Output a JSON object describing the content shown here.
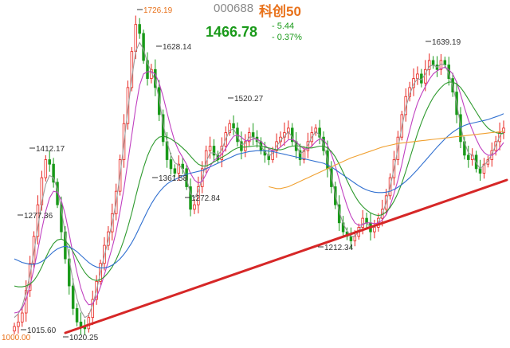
{
  "header": {
    "code": "000688",
    "name": "科创50",
    "price": "1466.78",
    "change": "- 5.44",
    "change_pct": "- 0.37%"
  },
  "colors": {
    "up": "#e8231d",
    "down": "#1a9a1a",
    "trendline": "#d62727",
    "ma_white": "#9a9a9a",
    "ma_yellow": "#e0b020",
    "ma_purple": "#c040c0",
    "ma_green": "#2e9a2e",
    "ma_blue": "#2f6fd0",
    "ma_orange": "#f0a030",
    "high_label": "#e8711a"
  },
  "chart_data": {
    "type": "candlestick",
    "title": "科创50",
    "ylim": [
      1000,
      1740
    ],
    "grid": false,
    "annotations": [
      {
        "label": "1726.19",
        "value": 1726.19,
        "kind": "high"
      },
      {
        "label": "1628.14",
        "value": 1628.14,
        "kind": "high"
      },
      {
        "label": "1639.19",
        "value": 1639.19,
        "kind": "high"
      },
      {
        "label": "1520.27",
        "value": 1520.27,
        "kind": "high"
      },
      {
        "label": "1412.17",
        "value": 1412.17,
        "kind": "high"
      },
      {
        "label": "1361.58",
        "value": 1361.58,
        "kind": "low"
      },
      {
        "label": "1277.36",
        "value": 1277.36,
        "kind": "low"
      },
      {
        "label": "1272.84",
        "value": 1272.84,
        "kind": "low"
      },
      {
        "label": "1212.34",
        "value": 1212.34,
        "kind": "low"
      },
      {
        "label": "1015.60",
        "value": 1015.6,
        "kind": "low"
      },
      {
        "label": "1020.25",
        "value": 1020.25,
        "kind": "low"
      },
      {
        "label": "1000.00",
        "value": 1000.0,
        "kind": "base"
      }
    ],
    "trendline": {
      "from": 1015.6,
      "to": 1212.34,
      "color": "#d62727"
    },
    "closes": [
      1030,
      1040,
      1060,
      1110,
      1170,
      1230,
      1300,
      1360,
      1400,
      1390,
      1350,
      1300,
      1240,
      1180,
      1120,
      1070,
      1040,
      1030,
      1025,
      1050,
      1090,
      1130,
      1170,
      1210,
      1240,
      1280,
      1330,
      1400,
      1480,
      1560,
      1640,
      1700,
      1680,
      1620,
      1580,
      1600,
      1560,
      1500,
      1440,
      1400,
      1380,
      1370,
      1390,
      1380,
      1340,
      1290,
      1300,
      1340,
      1380,
      1420,
      1430,
      1410,
      1400,
      1430,
      1460,
      1480,
      1470,
      1440,
      1420,
      1440,
      1460,
      1450,
      1440,
      1420,
      1410,
      1400,
      1420,
      1440,
      1450,
      1460,
      1470,
      1440,
      1420,
      1400,
      1420,
      1440,
      1460,
      1470,
      1450,
      1420,
      1380,
      1340,
      1300,
      1260,
      1240,
      1230,
      1220,
      1230,
      1250,
      1270,
      1260,
      1240,
      1250,
      1270,
      1290,
      1320,
      1360,
      1400,
      1450,
      1500,
      1540,
      1560,
      1580,
      1590,
      1570,
      1600,
      1620,
      1610,
      1600,
      1620,
      1610,
      1580,
      1550,
      1500,
      1440,
      1410,
      1400,
      1410,
      1380,
      1370,
      1390,
      1400,
      1420,
      1440,
      1460,
      1470
    ]
  },
  "ma_series": [
    {
      "color": "#9a9a9a",
      "values": [
        1050,
        1058,
        1075,
        1105,
        1145,
        1195,
        1250,
        1305,
        1345,
        1365,
        1360,
        1335,
        1290,
        1235,
        1180,
        1130,
        1092,
        1065,
        1050,
        1055,
        1078,
        1110,
        1150,
        1188,
        1222,
        1260,
        1305,
        1365,
        1435,
        1510,
        1580,
        1640,
        1660,
        1645,
        1615,
        1595,
        1575,
        1535,
        1480,
        1440,
        1410,
        1393,
        1388,
        1380,
        1358,
        1325,
        1315,
        1330,
        1360,
        1395,
        1415,
        1415,
        1410,
        1422,
        1445,
        1465,
        1468,
        1452,
        1433,
        1436,
        1450,
        1450,
        1444,
        1430,
        1418,
        1408,
        1414,
        1430,
        1442,
        1452,
        1462,
        1450,
        1432,
        1414,
        1418,
        1432,
        1450,
        1462,
        1455,
        1433,
        1400,
        1362,
        1322,
        1285,
        1258,
        1242,
        1230,
        1230,
        1242,
        1258,
        1260,
        1250,
        1250,
        1262,
        1280,
        1305,
        1340,
        1380,
        1425,
        1472,
        1515,
        1545,
        1567,
        1580,
        1577,
        1590,
        1607,
        1610,
        1605,
        1612,
        1610,
        1590,
        1565,
        1525,
        1475,
        1438,
        1415,
        1410,
        1393,
        1380,
        1388,
        1397,
        1413,
        1432,
        1452,
        1464
      ]
    },
    {
      "color": "#c040c0",
      "values": [
        1060,
        1062,
        1070,
        1090,
        1120,
        1158,
        1200,
        1245,
        1285,
        1315,
        1330,
        1328,
        1310,
        1278,
        1235,
        1190,
        1150,
        1115,
        1090,
        1078,
        1080,
        1095,
        1118,
        1145,
        1175,
        1205,
        1240,
        1285,
        1335,
        1395,
        1455,
        1515,
        1565,
        1590,
        1595,
        1595,
        1590,
        1570,
        1540,
        1505,
        1470,
        1440,
        1420,
        1405,
        1390,
        1370,
        1355,
        1348,
        1352,
        1368,
        1385,
        1398,
        1405,
        1412,
        1425,
        1440,
        1452,
        1455,
        1450,
        1442,
        1442,
        1446,
        1446,
        1440,
        1432,
        1424,
        1420,
        1422,
        1428,
        1436,
        1444,
        1445,
        1440,
        1430,
        1424,
        1424,
        1430,
        1440,
        1446,
        1444,
        1432,
        1412,
        1386,
        1355,
        1325,
        1298,
        1275,
        1260,
        1254,
        1256,
        1260,
        1260,
        1258,
        1260,
        1266,
        1278,
        1298,
        1325,
        1355,
        1390,
        1430,
        1465,
        1498,
        1525,
        1545,
        1562,
        1578,
        1590,
        1597,
        1602,
        1605,
        1600,
        1590,
        1572,
        1545,
        1515,
        1488,
        1466,
        1446,
        1428,
        1416,
        1410,
        1410,
        1416,
        1426,
        1438
      ]
    },
    {
      "color": "#2e9a2e",
      "values": [
        1120,
        1118,
        1118,
        1120,
        1124,
        1132,
        1145,
        1162,
        1182,
        1200,
        1214,
        1222,
        1224,
        1220,
        1210,
        1196,
        1180,
        1164,
        1150,
        1140,
        1134,
        1132,
        1134,
        1140,
        1150,
        1162,
        1178,
        1198,
        1222,
        1250,
        1282,
        1318,
        1352,
        1382,
        1408,
        1428,
        1442,
        1450,
        1452,
        1450,
        1446,
        1440,
        1434,
        1426,
        1418,
        1408,
        1398,
        1390,
        1386,
        1386,
        1390,
        1395,
        1400,
        1405,
        1410,
        1416,
        1422,
        1426,
        1428,
        1428,
        1429,
        1430,
        1431,
        1430,
        1428,
        1426,
        1424,
        1422,
        1422,
        1424,
        1428,
        1430,
        1431,
        1430,
        1428,
        1426,
        1426,
        1428,
        1430,
        1430,
        1426,
        1418,
        1406,
        1390,
        1372,
        1354,
        1336,
        1320,
        1306,
        1296,
        1288,
        1282,
        1278,
        1276,
        1278,
        1284,
        1294,
        1308,
        1326,
        1348,
        1374,
        1402,
        1430,
        1458,
        1482,
        1504,
        1522,
        1538,
        1550,
        1560,
        1568,
        1572,
        1572,
        1568,
        1560,
        1548,
        1534,
        1520,
        1506,
        1492,
        1480,
        1470,
        1464,
        1460,
        1458,
        1458
      ]
    },
    {
      "color": "#2f6fd0",
      "values": [
        1180,
        1176,
        1172,
        1170,
        1168,
        1168,
        1170,
        1174,
        1180,
        1188,
        1196,
        1202,
        1206,
        1208,
        1206,
        1202,
        1196,
        1188,
        1180,
        1172,
        1166,
        1162,
        1160,
        1160,
        1162,
        1166,
        1172,
        1180,
        1190,
        1202,
        1216,
        1232,
        1250,
        1268,
        1286,
        1302,
        1316,
        1328,
        1338,
        1346,
        1352,
        1356,
        1360,
        1364,
        1368,
        1370,
        1372,
        1374,
        1376,
        1380,
        1384,
        1388,
        1392,
        1396,
        1400,
        1404,
        1408,
        1412,
        1414,
        1416,
        1418,
        1419,
        1420,
        1420,
        1420,
        1419,
        1418,
        1416,
        1414,
        1412,
        1410,
        1408,
        1406,
        1404,
        1402,
        1400,
        1398,
        1396,
        1394,
        1392,
        1388,
        1384,
        1378,
        1372,
        1366,
        1360,
        1354,
        1348,
        1342,
        1337,
        1333,
        1330,
        1328,
        1327,
        1327,
        1328,
        1330,
        1334,
        1339,
        1345,
        1352,
        1360,
        1369,
        1378,
        1388,
        1398,
        1408,
        1418,
        1428,
        1437,
        1446,
        1454,
        1461,
        1467,
        1472,
        1476,
        1479,
        1481,
        1483,
        1485,
        1487,
        1489,
        1492,
        1495,
        1498,
        1502
      ]
    },
    {
      "color": "#f0a030",
      "values": [
        null,
        null,
        null,
        null,
        null,
        null,
        null,
        null,
        null,
        null,
        null,
        null,
        null,
        null,
        null,
        null,
        null,
        null,
        null,
        null,
        null,
        null,
        null,
        null,
        null,
        null,
        null,
        null,
        null,
        null,
        null,
        null,
        null,
        null,
        null,
        null,
        null,
        null,
        null,
        null,
        null,
        null,
        null,
        null,
        null,
        null,
        null,
        null,
        null,
        null,
        null,
        null,
        null,
        null,
        null,
        null,
        null,
        null,
        null,
        null,
        null,
        null,
        null,
        null,
        null,
        1340,
        1338,
        1336,
        1336,
        1338,
        1340,
        1344,
        1348,
        1352,
        1356,
        1360,
        1364,
        1368,
        1372,
        1376,
        1380,
        1384,
        1388,
        1392,
        1396,
        1400,
        1404,
        1407,
        1410,
        1413,
        1416,
        1419,
        1422,
        1425,
        1428,
        1430,
        1432,
        1434,
        1436,
        1437,
        1438,
        1439,
        1440,
        1441,
        1442,
        1443,
        1444,
        1445,
        1446,
        1447,
        1448,
        1449,
        1450,
        1451,
        1452,
        1453,
        1454,
        1455,
        1456,
        1457,
        1458,
        1459,
        1460,
        1461,
        1462,
        1463
      ]
    }
  ]
}
